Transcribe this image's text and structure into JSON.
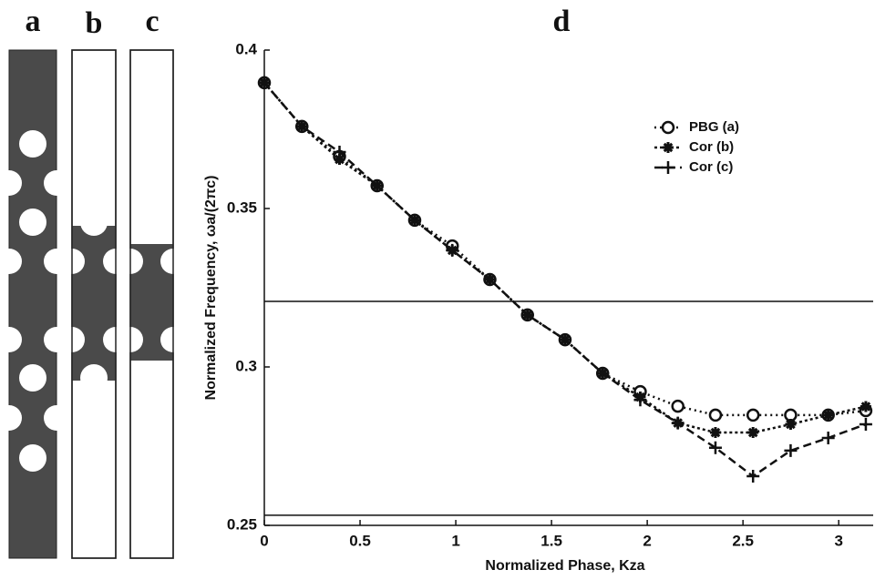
{
  "panel_labels": [
    "a",
    "b",
    "c"
  ],
  "chart_data": {
    "type": "line",
    "title": "d",
    "x_label": "Normalized Phase, Kza",
    "y_label": "Normalized Frequency, ωa/(2πc)",
    "x": [
      0,
      0.19635,
      0.3927,
      0.58905,
      0.7854,
      0.98175,
      1.1781,
      1.37445,
      1.5708,
      1.76715,
      1.9635,
      2.15985,
      2.3562,
      2.55255,
      2.7489,
      2.94525,
      3.1416
    ],
    "series": [
      {
        "name": "PBG (a)",
        "color": "#111",
        "dash": "2 4",
        "marker": "circle",
        "values": [
          0.3897,
          0.3759,
          0.3664,
          0.3572,
          0.3463,
          0.3382,
          0.3276,
          0.3164,
          0.3086,
          0.298,
          0.2922,
          0.2876,
          0.2848,
          0.2848,
          0.2848,
          0.2848,
          0.2862
        ]
      },
      {
        "name": "Cor (b)",
        "color": "#111",
        "dash": "3 3",
        "marker": "asterisk",
        "values": [
          0.3897,
          0.3759,
          0.3655,
          0.3572,
          0.3463,
          0.3368,
          0.3276,
          0.3164,
          0.3086,
          0.298,
          0.2905,
          0.2823,
          0.2793,
          0.2793,
          0.2819,
          0.2848,
          0.2875
        ]
      },
      {
        "name": "Cor (c)",
        "color": "#111",
        "dash": "9 5",
        "marker": "plus",
        "values": [
          0.3897,
          0.3759,
          0.3678,
          0.3572,
          0.3463,
          0.3368,
          0.3276,
          0.3164,
          0.3086,
          0.298,
          0.2896,
          0.2823,
          0.2745,
          0.2655,
          0.2736,
          0.2776,
          0.2819
        ]
      }
    ],
    "hlines": [
      0.3207,
      0.2532
    ],
    "xlim": [
      0,
      3.18
    ],
    "ylim": [
      0.25,
      0.4
    ],
    "xticks": [
      0,
      0.5,
      1,
      1.5,
      2,
      2.5,
      3
    ],
    "yticks": [
      0.25,
      0.3,
      0.35,
      0.4
    ],
    "legend": "upper right"
  }
}
